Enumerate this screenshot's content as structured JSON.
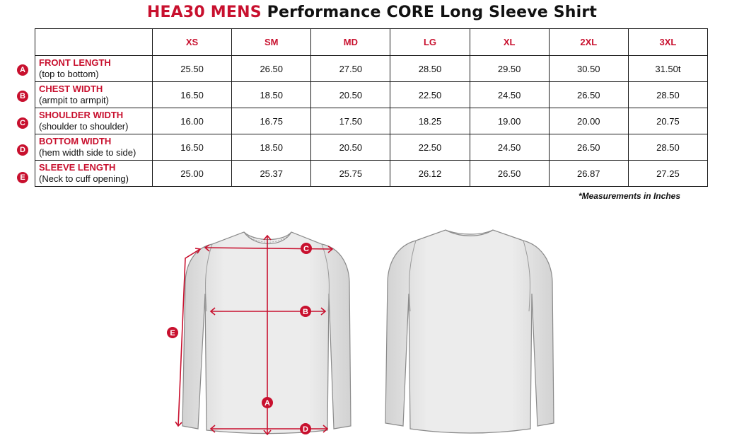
{
  "title": {
    "code": "HEA30 MENS",
    "rest": "Performance CORE Long Sleeve Shirt"
  },
  "sizes": [
    "XS",
    "SM",
    "MD",
    "LG",
    "XL",
    "2XL",
    "3XL"
  ],
  "rows": [
    {
      "badge": "A",
      "name": "FRONT LENGTH",
      "desc": "(top to bottom)",
      "values": [
        "25.50",
        "26.50",
        "27.50",
        "28.50",
        "29.50",
        "30.50",
        "31.50t"
      ]
    },
    {
      "badge": "B",
      "name": "CHEST WIDTH",
      "desc": "(armpit to armpit)",
      "values": [
        "16.50",
        "18.50",
        "20.50",
        "22.50",
        "24.50",
        "26.50",
        "28.50"
      ]
    },
    {
      "badge": "C",
      "name": "SHOULDER WIDTH",
      "desc": "(shoulder to shoulder)",
      "values": [
        "16.00",
        "16.75",
        "17.50",
        "18.25",
        "19.00",
        "20.00",
        "20.75"
      ]
    },
    {
      "badge": "D",
      "name": "BOTTOM WIDTH",
      "desc": "(hem width side to side)",
      "values": [
        "16.50",
        "18.50",
        "20.50",
        "22.50",
        "24.50",
        "26.50",
        "28.50"
      ]
    },
    {
      "badge": "E",
      "name": "SLEEVE LENGTH",
      "desc": "(Neck to cuff opening)",
      "values": [
        "25.00",
        "25.37",
        "25.75",
        "26.12",
        "26.50",
        "26.87",
        "27.25"
      ]
    }
  ],
  "note": "*Measurements in Inches",
  "diagram": {
    "markers": [
      "C",
      "B",
      "E",
      "A",
      "D"
    ]
  },
  "colors": {
    "accent": "#c8102e",
    "shirt": "#e4e4e4",
    "shirt_outline": "#8a8a8a"
  }
}
